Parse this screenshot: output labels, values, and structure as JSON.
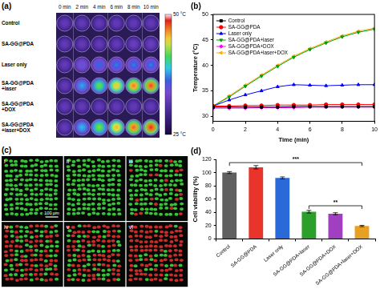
{
  "panel_a": {
    "label": "(a)",
    "columns": [
      "0 min",
      "2 min",
      "4 min",
      "6 min",
      "8 min",
      "10 min"
    ],
    "rows": [
      [
        "Control"
      ],
      [
        "SA-GG@PDA"
      ],
      [
        "Laser only"
      ],
      [
        "SA-GG@PDA",
        "+laser"
      ],
      [
        "SA-GG@PDA",
        "+DOX"
      ],
      [
        "SA-GG@PDA",
        "+laser+DOX"
      ]
    ],
    "cells": [
      [
        32,
        32,
        32,
        32,
        32,
        32
      ],
      [
        32,
        32,
        32,
        32,
        32.5,
        32.5
      ],
      [
        32,
        35,
        36.5,
        37,
        37,
        37
      ],
      [
        32,
        38,
        42,
        45,
        47,
        48
      ],
      [
        32,
        32,
        32,
        32,
        32,
        32
      ],
      [
        32,
        38.5,
        42.5,
        45.5,
        47.5,
        48.5
      ]
    ],
    "colorbar": {
      "range": [
        25,
        50
      ],
      "ticks": [
        {
          "value": 50,
          "label": "50 °C"
        },
        {
          "value": 25,
          "label": "25 °C"
        }
      ]
    }
  },
  "chart_data": [
    {
      "type": "line",
      "title": "(b)",
      "x_label": "Time (min)",
      "y_label": "Temperature (°C)",
      "x": [
        0,
        1,
        2,
        3,
        4,
        5,
        6,
        7,
        8,
        9,
        10
      ],
      "xlim": [
        0,
        10
      ],
      "xticks": [
        0,
        2,
        4,
        6,
        8,
        10
      ],
      "ylim": [
        29,
        50
      ],
      "yticks": [
        30,
        35,
        40,
        45,
        50
      ],
      "grid": false,
      "legend": "upper left",
      "series": [
        {
          "name": "Control",
          "color": "#000000",
          "marker": "square",
          "values": [
            31.8,
            31.8,
            31.8,
            31.8,
            31.8,
            31.9,
            31.9,
            31.9,
            31.9,
            31.9,
            31.9
          ]
        },
        {
          "name": "SA-GG@PDA",
          "color": "#ff0000",
          "marker": "circle",
          "values": [
            32.0,
            32.0,
            32.1,
            32.1,
            32.2,
            32.2,
            32.2,
            32.3,
            32.3,
            32.3,
            32.3
          ]
        },
        {
          "name": "Laser only",
          "color": "#0000ff",
          "marker": "triangle",
          "values": [
            32.0,
            33.2,
            34.2,
            35.0,
            35.8,
            36.2,
            36.1,
            36.0,
            36.1,
            36.2,
            36.2
          ]
        },
        {
          "name": "SA-GG@PDA+laser",
          "color": "#00a000",
          "marker": "triangle-down",
          "values": [
            32.0,
            33.8,
            35.9,
            37.9,
            39.8,
            41.6,
            43.1,
            44.4,
            45.6,
            46.5,
            47.1
          ]
        },
        {
          "name": "SA-GG@PDA+DOX",
          "color": "#ff00ff",
          "marker": "diamond",
          "values": [
            31.6,
            31.6,
            31.6,
            31.7,
            31.7,
            31.7,
            31.8,
            31.8,
            31.8,
            31.8,
            31.8
          ]
        },
        {
          "name": "SA-GG@PDA+laser+DOX",
          "color": "#ffaa00",
          "marker": "triangle-left",
          "values": [
            32.0,
            34.0,
            36.1,
            38.1,
            40.0,
            41.8,
            43.3,
            44.6,
            45.8,
            46.7,
            47.3
          ]
        }
      ]
    },
    {
      "type": "bar",
      "title": "(d)",
      "y_label": "Cell viability (%)",
      "categories": [
        "Control",
        "SA-GG@PDA",
        "Laser only",
        "SA-GG@PDA+laser",
        "SA-GG@PDA+DOX",
        "SA-GG@PDA+laser+DOX"
      ],
      "values": [
        100,
        108,
        92,
        41,
        38,
        19.5
      ],
      "errors": [
        1.5,
        2.5,
        1.5,
        2,
        1.5,
        1
      ],
      "colors": [
        "#606060",
        "#e8342a",
        "#2a6ad8",
        "#2aa02a",
        "#a040c0",
        "#e8a020"
      ],
      "ylim": [
        0,
        120
      ],
      "yticks": [
        0,
        20,
        40,
        60,
        80,
        100,
        120
      ],
      "grid": false,
      "annotations": [
        {
          "text": "***",
          "from": "Control",
          "to": "SA-GG@PDA+laser+DOX",
          "y": 115
        },
        {
          "text": "**",
          "from": "SA-GG@PDA+laser",
          "to": "SA-GG@PDA+laser+DOX",
          "y": 50
        }
      ]
    }
  ],
  "panel_c": {
    "label": "(c)",
    "images": [
      "i",
      "ii",
      "iii",
      "iv",
      "v",
      "vi"
    ],
    "scale_bar": "100 μm"
  }
}
